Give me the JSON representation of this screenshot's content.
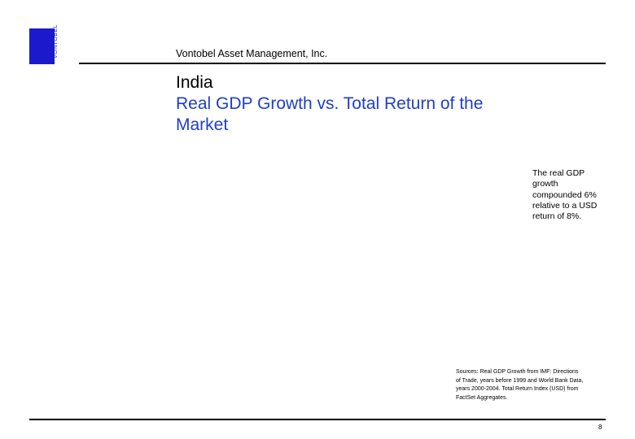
{
  "header": {
    "logo_wordmark": "VONTOBEL",
    "company": "Vontobel Asset Management, Inc."
  },
  "title": {
    "country": "India",
    "subtitle_line1": "Real GDP Growth vs. Total Return of the",
    "subtitle_line2": "Market"
  },
  "note": {
    "line1": "The real GDP",
    "line2": "growth",
    "line3": "compounded 6%",
    "line4": "relative to a USD",
    "line5": "return of  8%."
  },
  "sources": {
    "line1": "Sources: Real GDP Growth from IMF: Directions",
    "line2": "of Trade, years before 1999 and World Bank Data,",
    "line3": "years 2000-2004. Total Return Index (USD) from",
    "line4": "FactSet Aggregates."
  },
  "footer": {
    "page_number": "8"
  },
  "colors": {
    "brand_blue": "#1a1acc",
    "title_blue": "#1f3ec8"
  }
}
